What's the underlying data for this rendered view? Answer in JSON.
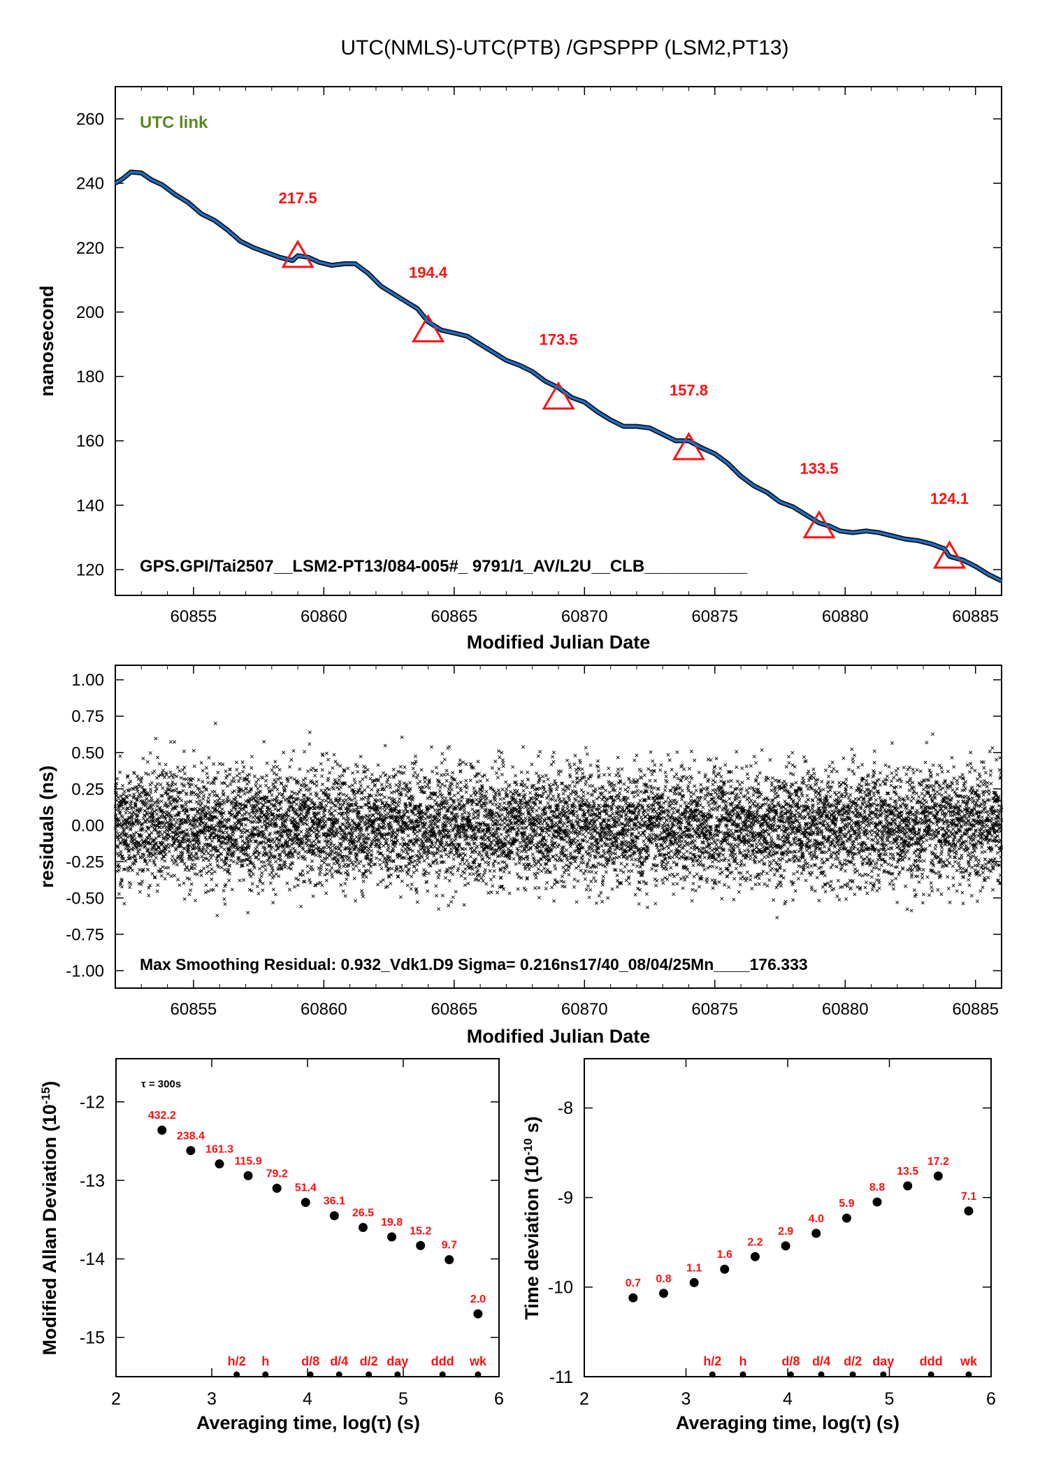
{
  "figure": {
    "title": "UTC(NMLS)-UTC(PTB)  /GPSPPP  (LSM2,PT13)"
  },
  "chart_data": [
    {
      "type": "line",
      "name": "top",
      "xlabel": "Modified Julian Date",
      "ylabel": "nanosecond",
      "xlim": [
        60852,
        60886
      ],
      "ylim": [
        112,
        270
      ],
      "xticks": [
        60855,
        60860,
        60865,
        60870,
        60875,
        60880,
        60885
      ],
      "yticks": [
        120,
        140,
        160,
        180,
        200,
        220,
        240,
        260
      ],
      "annotation_label": "UTC link",
      "annotation_color": "#5b8a1f",
      "series_color": "#1e6fc8",
      "line": {
        "x": [
          60852.0,
          60852.3,
          60852.6,
          60853.0,
          60853.4,
          60853.8,
          60854.3,
          60854.8,
          60855.3,
          60855.8,
          60856.3,
          60856.8,
          60857.3,
          60857.8,
          60858.3,
          60858.8,
          60859.0,
          60859.4,
          60859.8,
          60860.3,
          60860.8,
          60861.2,
          60861.7,
          60862.2,
          60862.7,
          60863.2,
          60863.6,
          60864.0,
          60864.5,
          60865.0,
          60865.5,
          60866.0,
          60866.5,
          60867.0,
          60867.5,
          60868.0,
          60868.5,
          60869.0,
          60869.5,
          60870.0,
          60870.5,
          60871.0,
          60871.5,
          60872.0,
          60872.5,
          60873.0,
          60873.5,
          60874.0,
          60874.5,
          60875.0,
          60875.5,
          60876.0,
          60876.5,
          60877.0,
          60877.5,
          60878.0,
          60878.5,
          60879.0,
          60879.4,
          60879.8,
          60880.3,
          60880.8,
          60881.3,
          60881.8,
          60882.3,
          60882.8,
          60883.3,
          60883.8,
          60884.0,
          60884.5,
          60885.0,
          60885.5,
          60886.0
        ],
        "y": [
          240.0,
          241.5,
          243.5,
          243.2,
          241.0,
          239.5,
          236.5,
          234.0,
          230.5,
          228.5,
          225.5,
          222.0,
          220.0,
          218.5,
          217.0,
          216.0,
          217.5,
          217.0,
          215.5,
          214.5,
          215.0,
          215.0,
          212.0,
          208.0,
          205.5,
          203.0,
          201.0,
          197.0,
          194.4,
          193.5,
          192.5,
          190.0,
          187.5,
          185.0,
          183.5,
          181.5,
          178.5,
          176.5,
          173.5,
          172.0,
          169.0,
          166.5,
          164.5,
          164.5,
          164.0,
          162.0,
          160.0,
          160.0,
          157.8,
          156.0,
          153.0,
          149.0,
          146.0,
          144.0,
          141.0,
          139.5,
          137.0,
          134.5,
          133.5,
          132.0,
          131.5,
          132.0,
          131.5,
          130.5,
          129.5,
          129.0,
          128.0,
          126.5,
          124.1,
          123.0,
          121.0,
          118.5,
          116.5
        ]
      },
      "markers": [
        {
          "x": 60859,
          "y": 217.5,
          "label": "217.5"
        },
        {
          "x": 60864,
          "y": 194.4,
          "label": "194.4"
        },
        {
          "x": 60869,
          "y": 173.5,
          "label": "173.5"
        },
        {
          "x": 60874,
          "y": 157.8,
          "label": "157.8"
        },
        {
          "x": 60879,
          "y": 133.5,
          "label": "133.5"
        },
        {
          "x": 60884,
          "y": 124.1,
          "label": "124.1"
        }
      ],
      "footer_text": "GPS.GPI/Tai2507__LSM2-PT13/084-005#_  9791/1_AV/L2U__CLB___________"
    },
    {
      "type": "scatter",
      "name": "residuals",
      "xlabel": "Modified Julian Date",
      "ylabel": "residuals (ns)",
      "xlim": [
        60852,
        60886
      ],
      "ylim": [
        -1.12,
        1.1
      ],
      "xticks": [
        60855,
        60860,
        60865,
        60870,
        60875,
        60880,
        60885
      ],
      "yticks": [
        1.0,
        0.75,
        0.5,
        0.25,
        0.0,
        -0.25,
        -0.5,
        -0.75,
        -1.0
      ],
      "ytick_labels": [
        "1.00",
        "0.75",
        "0.50",
        "0.25",
        "0.00",
        "-0.25",
        "-0.50",
        "-0.75",
        "-1.00"
      ],
      "max_residual": 0.932,
      "sigma_ns": 0.216,
      "marker": "x",
      "footer_text": "Max Smoothing Residual: 0.932_Vdk1.D9  Sigma= 0.216ns17/40_08/04/25Mn____176.333"
    },
    {
      "type": "scatter",
      "name": "mdev",
      "xlabel": "Averaging time, log(τ) (s)",
      "ylabel_main": "Modified Allan Deviation (10",
      "ylabel_exp": "-15",
      "ylabel_tail": ")",
      "xlim": [
        2,
        6
      ],
      "ylim": [
        -15.5,
        -11.45
      ],
      "xticks": [
        2,
        3,
        4,
        5,
        6
      ],
      "yticks": [
        -12,
        -13,
        -14,
        -15
      ],
      "note": "τ = 300s",
      "points": [
        {
          "x": 2.48,
          "y": -12.36,
          "label": "432.2"
        },
        {
          "x": 2.78,
          "y": -12.62,
          "label": "238.4"
        },
        {
          "x": 3.08,
          "y": -12.79,
          "label": "161.3"
        },
        {
          "x": 3.38,
          "y": -12.94,
          "label": "115.9"
        },
        {
          "x": 3.68,
          "y": -13.1,
          "label": "79.2"
        },
        {
          "x": 3.98,
          "y": -13.28,
          "label": "51.4"
        },
        {
          "x": 4.28,
          "y": -13.45,
          "label": "36.1"
        },
        {
          "x": 4.58,
          "y": -13.6,
          "label": "26.5"
        },
        {
          "x": 4.88,
          "y": -13.72,
          "label": "19.8"
        },
        {
          "x": 5.18,
          "y": -13.83,
          "label": "15.2"
        },
        {
          "x": 5.48,
          "y": -14.01,
          "label": "9.7"
        },
        {
          "x": 5.78,
          "y": -14.7,
          "label": "2.0"
        }
      ],
      "time_marks": [
        {
          "x": 3.26,
          "label": "h/2"
        },
        {
          "x": 3.56,
          "label": "h"
        },
        {
          "x": 4.03,
          "label": "d/8"
        },
        {
          "x": 4.33,
          "label": "d/4"
        },
        {
          "x": 4.64,
          "label": "d/2"
        },
        {
          "x": 4.94,
          "label": "day"
        },
        {
          "x": 5.41,
          "label": "ddd"
        },
        {
          "x": 5.78,
          "label": "wk"
        }
      ]
    },
    {
      "type": "scatter",
      "name": "tdev",
      "xlabel": "Averaging time, log(τ) (s)",
      "ylabel_main": "Time deviation (10",
      "ylabel_exp": "-10",
      "ylabel_tail": " s)",
      "xlim": [
        2,
        6
      ],
      "ylim": [
        -11,
        -7.45
      ],
      "xticks": [
        2,
        3,
        4,
        5,
        6
      ],
      "yticks": [
        -8,
        -9,
        -10,
        -11
      ],
      "points": [
        {
          "x": 2.48,
          "y": -10.12,
          "label": "0.7"
        },
        {
          "x": 2.78,
          "y": -10.07,
          "label": "0.8"
        },
        {
          "x": 3.08,
          "y": -9.95,
          "label": "1.1"
        },
        {
          "x": 3.38,
          "y": -9.8,
          "label": "1.6"
        },
        {
          "x": 3.68,
          "y": -9.66,
          "label": "2.2"
        },
        {
          "x": 3.98,
          "y": -9.54,
          "label": "2.9"
        },
        {
          "x": 4.28,
          "y": -9.4,
          "label": "4.0"
        },
        {
          "x": 4.58,
          "y": -9.23,
          "label": "5.9"
        },
        {
          "x": 4.88,
          "y": -9.05,
          "label": "8.8"
        },
        {
          "x": 5.18,
          "y": -8.87,
          "label": "13.5"
        },
        {
          "x": 5.48,
          "y": -8.76,
          "label": "17.2"
        },
        {
          "x": 5.78,
          "y": -9.15,
          "label": "7.1"
        }
      ],
      "time_marks": [
        {
          "x": 3.26,
          "label": "h/2"
        },
        {
          "x": 3.56,
          "label": "h"
        },
        {
          "x": 4.03,
          "label": "d/8"
        },
        {
          "x": 4.33,
          "label": "d/4"
        },
        {
          "x": 4.64,
          "label": "d/2"
        },
        {
          "x": 4.94,
          "label": "day"
        },
        {
          "x": 5.41,
          "label": "ddd"
        },
        {
          "x": 5.78,
          "label": "wk"
        }
      ]
    }
  ]
}
